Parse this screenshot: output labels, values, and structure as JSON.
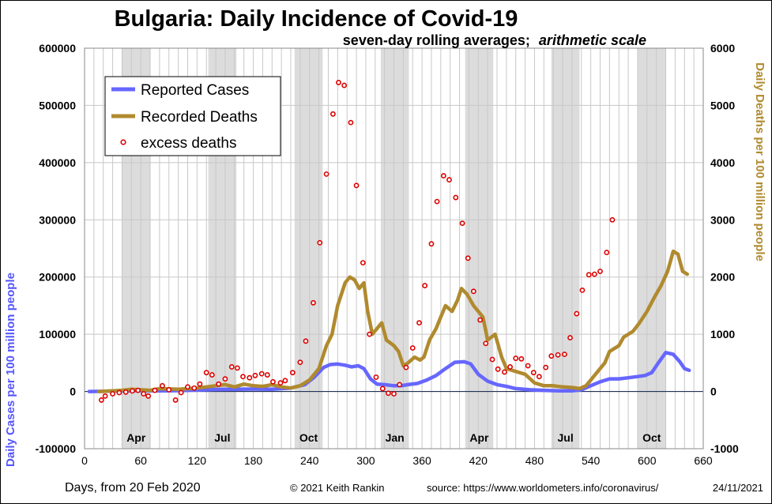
{
  "chart_data": {
    "type": "line",
    "title": "Bulgaria: Daily Incidence of Covid-19",
    "subtitle_main": "seven-day rolling averages;",
    "subtitle_italic": "arithmetic scale",
    "xlabel": "Days, from 20 Feb 2020",
    "ylabel_left": "Daily Cases per 100 million people",
    "ylabel_right": "Daily Deaths per 100 million people",
    "footer_copyright": "© 2021  Keith Rankin",
    "footer_source": "source:  https://www.worldometers.info/coronavirus/",
    "footer_date": "24/11/2021",
    "xlim": [
      0,
      660
    ],
    "ylim_left": [
      -100000,
      600000
    ],
    "ylim_right": [
      -1000,
      6000
    ],
    "x_ticks": [
      0,
      60,
      120,
      180,
      240,
      300,
      360,
      420,
      480,
      540,
      600,
      660
    ],
    "y_ticks_left": [
      "-100000",
      "0",
      "100000",
      "200000",
      "300000",
      "400000",
      "500000",
      "600000"
    ],
    "y_ticks_right": [
      "-1000",
      "0",
      "1000",
      "2000",
      "3000",
      "4000",
      "5000",
      "6000"
    ],
    "grid": true,
    "legend_position": "top-left",
    "bands": [
      [
        40,
        70
      ],
      [
        132,
        162
      ],
      [
        224,
        254
      ],
      [
        316,
        346
      ],
      [
        406,
        436
      ],
      [
        498,
        528
      ],
      [
        590,
        620
      ]
    ],
    "months": [
      {
        "label": "Apr",
        "x": 55
      },
      {
        "label": "Jul",
        "x": 147
      },
      {
        "label": "Oct",
        "x": 239
      },
      {
        "label": "Jan",
        "x": 331
      },
      {
        "label": "Apr",
        "x": 421
      },
      {
        "label": "Jul",
        "x": 513
      },
      {
        "label": "Oct",
        "x": 605
      }
    ],
    "series": [
      {
        "name": "Reported Cases",
        "axis": "left",
        "color": "#6666ff",
        "points": [
          [
            5,
            0
          ],
          [
            20,
            300
          ],
          [
            40,
            1000
          ],
          [
            60,
            1500
          ],
          [
            80,
            1200
          ],
          [
            100,
            1500
          ],
          [
            120,
            2500
          ],
          [
            140,
            3500
          ],
          [
            160,
            4000
          ],
          [
            180,
            4200
          ],
          [
            200,
            4000
          ],
          [
            220,
            6000
          ],
          [
            235,
            12000
          ],
          [
            245,
            25000
          ],
          [
            255,
            42000
          ],
          [
            262,
            47000
          ],
          [
            270,
            48000
          ],
          [
            278,
            46000
          ],
          [
            285,
            43000
          ],
          [
            292,
            45000
          ],
          [
            298,
            40000
          ],
          [
            305,
            22000
          ],
          [
            312,
            13000
          ],
          [
            320,
            12000
          ],
          [
            330,
            10000
          ],
          [
            338,
            10000
          ],
          [
            345,
            12000
          ],
          [
            355,
            14000
          ],
          [
            365,
            20000
          ],
          [
            375,
            28000
          ],
          [
            385,
            40000
          ],
          [
            395,
            51000
          ],
          [
            405,
            52000
          ],
          [
            412,
            48000
          ],
          [
            420,
            30000
          ],
          [
            430,
            18000
          ],
          [
            440,
            12000
          ],
          [
            450,
            9000
          ],
          [
            460,
            5000
          ],
          [
            475,
            3000
          ],
          [
            490,
            2000
          ],
          [
            505,
            1000
          ],
          [
            520,
            1000
          ],
          [
            530,
            3000
          ],
          [
            540,
            10000
          ],
          [
            550,
            17000
          ],
          [
            560,
            22000
          ],
          [
            570,
            22000
          ],
          [
            580,
            24000
          ],
          [
            590,
            26000
          ],
          [
            598,
            28000
          ],
          [
            605,
            33000
          ],
          [
            612,
            50000
          ],
          [
            620,
            68000
          ],
          [
            628,
            65000
          ],
          [
            635,
            52000
          ],
          [
            640,
            40000
          ],
          [
            645,
            37000
          ]
        ]
      },
      {
        "name": "Recorded Deaths",
        "axis": "right",
        "color": "#b08a2e",
        "points": [
          [
            15,
            0
          ],
          [
            30,
            10
          ],
          [
            40,
            20
          ],
          [
            50,
            40
          ],
          [
            60,
            30
          ],
          [
            70,
            20
          ],
          [
            80,
            50
          ],
          [
            100,
            40
          ],
          [
            120,
            60
          ],
          [
            130,
            80
          ],
          [
            140,
            100
          ],
          [
            150,
            120
          ],
          [
            160,
            80
          ],
          [
            170,
            130
          ],
          [
            180,
            100
          ],
          [
            190,
            90
          ],
          [
            200,
            120
          ],
          [
            210,
            80
          ],
          [
            220,
            60
          ],
          [
            230,
            100
          ],
          [
            240,
            200
          ],
          [
            250,
            400
          ],
          [
            258,
            800
          ],
          [
            264,
            1000
          ],
          [
            270,
            1500
          ],
          [
            278,
            1900
          ],
          [
            283,
            2000
          ],
          [
            288,
            1950
          ],
          [
            293,
            1800
          ],
          [
            298,
            1900
          ],
          [
            302,
            1400
          ],
          [
            307,
            1000
          ],
          [
            312,
            1100
          ],
          [
            317,
            1200
          ],
          [
            322,
            900
          ],
          [
            330,
            800
          ],
          [
            335,
            700
          ],
          [
            340,
            450
          ],
          [
            345,
            500
          ],
          [
            352,
            600
          ],
          [
            358,
            550
          ],
          [
            362,
            600
          ],
          [
            368,
            900
          ],
          [
            375,
            1100
          ],
          [
            380,
            1300
          ],
          [
            385,
            1500
          ],
          [
            392,
            1400
          ],
          [
            398,
            1600
          ],
          [
            402,
            1800
          ],
          [
            408,
            1700
          ],
          [
            415,
            1500
          ],
          [
            420,
            1400
          ],
          [
            425,
            1300
          ],
          [
            430,
            900
          ],
          [
            438,
            1000
          ],
          [
            445,
            600
          ],
          [
            450,
            400
          ],
          [
            460,
            350
          ],
          [
            470,
            300
          ],
          [
            480,
            150
          ],
          [
            490,
            100
          ],
          [
            500,
            100
          ],
          [
            510,
            80
          ],
          [
            520,
            70
          ],
          [
            528,
            50
          ],
          [
            535,
            100
          ],
          [
            545,
            300
          ],
          [
            555,
            500
          ],
          [
            560,
            700
          ],
          [
            570,
            800
          ],
          [
            575,
            950
          ],
          [
            580,
            1000
          ],
          [
            585,
            1050
          ],
          [
            592,
            1200
          ],
          [
            600,
            1400
          ],
          [
            608,
            1650
          ],
          [
            615,
            1850
          ],
          [
            622,
            2100
          ],
          [
            628,
            2450
          ],
          [
            633,
            2400
          ],
          [
            638,
            2100
          ],
          [
            643,
            2050
          ]
        ]
      },
      {
        "name": "excess deaths",
        "axis": "right",
        "color": "#dd0000",
        "points": [
          [
            18,
            -150
          ],
          [
            22,
            -80
          ],
          [
            30,
            -40
          ],
          [
            37,
            -20
          ],
          [
            44,
            -10
          ],
          [
            51,
            10
          ],
          [
            57,
            20
          ],
          [
            63,
            -40
          ],
          [
            68,
            -80
          ],
          [
            75,
            20
          ],
          [
            83,
            100
          ],
          [
            90,
            30
          ],
          [
            97,
            -150
          ],
          [
            103,
            -20
          ],
          [
            110,
            80
          ],
          [
            117,
            60
          ],
          [
            123,
            130
          ],
          [
            130,
            330
          ],
          [
            136,
            290
          ],
          [
            143,
            130
          ],
          [
            150,
            220
          ],
          [
            157,
            430
          ],
          [
            163,
            410
          ],
          [
            169,
            260
          ],
          [
            176,
            240
          ],
          [
            182,
            280
          ],
          [
            189,
            310
          ],
          [
            195,
            290
          ],
          [
            201,
            170
          ],
          [
            209,
            150
          ],
          [
            214,
            190
          ],
          [
            222,
            330
          ],
          [
            230,
            510
          ],
          [
            236,
            880
          ],
          [
            244,
            1550
          ],
          [
            251,
            2600
          ],
          [
            258,
            3800
          ],
          [
            265,
            4850
          ],
          [
            271,
            5400
          ],
          [
            277,
            5350
          ],
          [
            284,
            4700
          ],
          [
            290,
            3600
          ],
          [
            297,
            2250
          ],
          [
            304,
            1000
          ],
          [
            311,
            250
          ],
          [
            318,
            50
          ],
          [
            324,
            -30
          ],
          [
            330,
            -40
          ],
          [
            336,
            120
          ],
          [
            343,
            420
          ],
          [
            350,
            760
          ],
          [
            357,
            1200
          ],
          [
            363,
            1850
          ],
          [
            370,
            2580
          ],
          [
            376,
            3320
          ],
          [
            383,
            3770
          ],
          [
            389,
            3700
          ],
          [
            396,
            3390
          ],
          [
            403,
            2940
          ],
          [
            409,
            2330
          ],
          [
            415,
            1750
          ],
          [
            422,
            1250
          ],
          [
            428,
            840
          ],
          [
            435,
            560
          ],
          [
            441,
            390
          ],
          [
            448,
            340
          ],
          [
            454,
            430
          ],
          [
            460,
            580
          ],
          [
            466,
            570
          ],
          [
            473,
            450
          ],
          [
            479,
            330
          ],
          [
            485,
            260
          ],
          [
            492,
            420
          ],
          [
            498,
            620
          ],
          [
            505,
            640
          ],
          [
            512,
            650
          ],
          [
            518,
            940
          ],
          [
            525,
            1360
          ],
          [
            531,
            1770
          ],
          [
            538,
            2040
          ],
          [
            544,
            2050
          ],
          [
            550,
            2100
          ],
          [
            557,
            2430
          ],
          [
            563,
            3000
          ]
        ]
      }
    ]
  }
}
